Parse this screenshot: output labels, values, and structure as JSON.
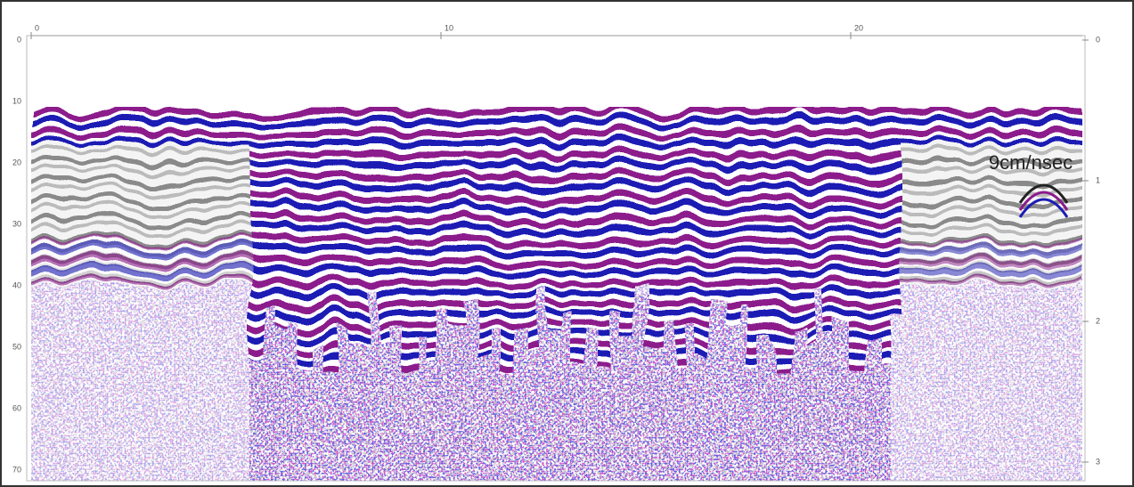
{
  "top_axis": {
    "ticks": [
      "0",
      "10",
      "20"
    ]
  },
  "left_axis": {
    "ticks": [
      "0",
      "10",
      "20",
      "30",
      "40",
      "50",
      "60",
      "70"
    ]
  },
  "right_axis": {
    "ticks": [
      "0",
      "1",
      "2",
      "3"
    ]
  },
  "annotation": "9cm/nsec"
}
